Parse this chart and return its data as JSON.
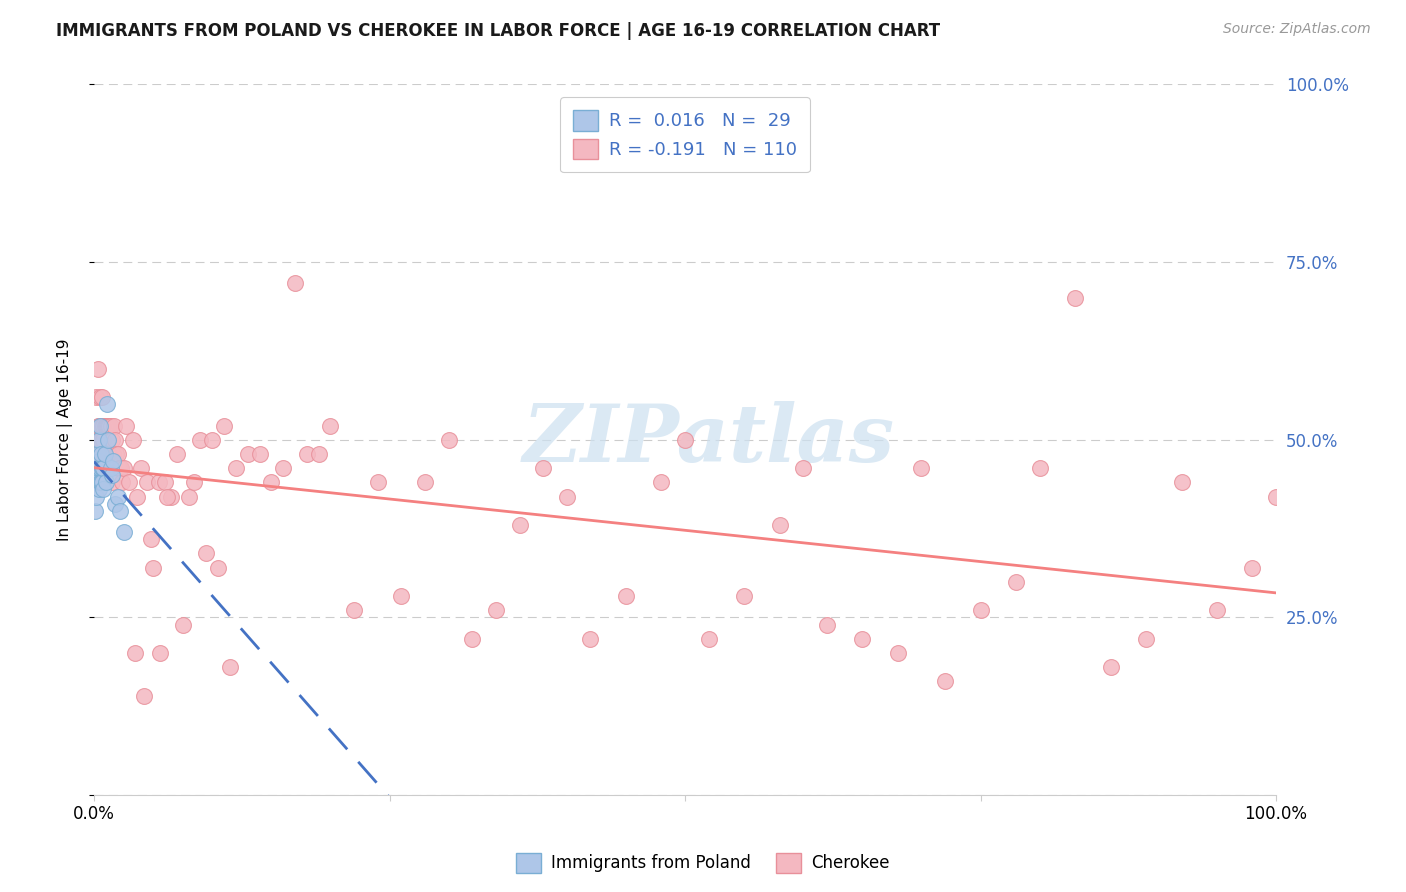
{
  "title": "IMMIGRANTS FROM POLAND VS CHEROKEE IN LABOR FORCE | AGE 16-19 CORRELATION CHART",
  "source": "Source: ZipAtlas.com",
  "ylabel": "In Labor Force | Age 16-19",
  "poland_scatter_x": [
    0.001,
    0.002,
    0.002,
    0.003,
    0.003,
    0.003,
    0.004,
    0.004,
    0.004,
    0.005,
    0.005,
    0.005,
    0.006,
    0.006,
    0.007,
    0.007,
    0.008,
    0.008,
    0.009,
    0.01,
    0.011,
    0.012,
    0.014,
    0.015,
    0.016,
    0.018,
    0.02,
    0.022,
    0.025
  ],
  "poland_scatter_y": [
    0.4,
    0.44,
    0.42,
    0.45,
    0.46,
    0.48,
    0.43,
    0.47,
    0.5,
    0.44,
    0.46,
    0.52,
    0.44,
    0.48,
    0.44,
    0.46,
    0.43,
    0.46,
    0.48,
    0.44,
    0.55,
    0.5,
    0.46,
    0.45,
    0.47,
    0.41,
    0.42,
    0.4,
    0.37
  ],
  "cherokee_scatter_x": [
    0.001,
    0.002,
    0.002,
    0.003,
    0.003,
    0.004,
    0.004,
    0.005,
    0.005,
    0.005,
    0.006,
    0.006,
    0.007,
    0.007,
    0.008,
    0.008,
    0.009,
    0.009,
    0.01,
    0.01,
    0.011,
    0.011,
    0.012,
    0.012,
    0.013,
    0.013,
    0.014,
    0.015,
    0.015,
    0.016,
    0.017,
    0.018,
    0.019,
    0.02,
    0.021,
    0.022,
    0.023,
    0.024,
    0.025,
    0.027,
    0.03,
    0.033,
    0.036,
    0.04,
    0.045,
    0.05,
    0.055,
    0.06,
    0.065,
    0.07,
    0.08,
    0.09,
    0.1,
    0.11,
    0.12,
    0.13,
    0.14,
    0.15,
    0.16,
    0.17,
    0.18,
    0.19,
    0.2,
    0.22,
    0.24,
    0.26,
    0.28,
    0.3,
    0.32,
    0.34,
    0.36,
    0.38,
    0.4,
    0.42,
    0.45,
    0.48,
    0.5,
    0.52,
    0.55,
    0.58,
    0.6,
    0.62,
    0.65,
    0.68,
    0.7,
    0.72,
    0.75,
    0.78,
    0.8,
    0.83,
    0.86,
    0.89,
    0.92,
    0.95,
    0.98,
    1.0,
    0.035,
    0.042,
    0.048,
    0.056,
    0.062,
    0.075,
    0.085,
    0.095,
    0.105,
    0.115
  ],
  "cherokee_scatter_y": [
    0.44,
    0.56,
    0.5,
    0.52,
    0.6,
    0.48,
    0.52,
    0.56,
    0.44,
    0.5,
    0.47,
    0.5,
    0.56,
    0.52,
    0.52,
    0.5,
    0.48,
    0.52,
    0.52,
    0.46,
    0.52,
    0.46,
    0.52,
    0.48,
    0.52,
    0.48,
    0.52,
    0.5,
    0.44,
    0.48,
    0.52,
    0.5,
    0.48,
    0.48,
    0.46,
    0.46,
    0.46,
    0.44,
    0.46,
    0.52,
    0.44,
    0.5,
    0.42,
    0.46,
    0.44,
    0.32,
    0.44,
    0.44,
    0.42,
    0.48,
    0.42,
    0.5,
    0.5,
    0.52,
    0.46,
    0.48,
    0.48,
    0.44,
    0.46,
    0.72,
    0.48,
    0.48,
    0.52,
    0.26,
    0.44,
    0.28,
    0.44,
    0.5,
    0.22,
    0.26,
    0.38,
    0.46,
    0.42,
    0.22,
    0.28,
    0.44,
    0.5,
    0.22,
    0.28,
    0.38,
    0.46,
    0.24,
    0.22,
    0.2,
    0.46,
    0.16,
    0.26,
    0.3,
    0.46,
    0.7,
    0.18,
    0.22,
    0.44,
    0.26,
    0.32,
    0.42,
    0.2,
    0.14,
    0.36,
    0.2,
    0.42,
    0.24,
    0.44,
    0.34,
    0.32,
    0.18
  ],
  "poland_line_color": "#4472c4",
  "cherokee_line_color": "#f48080",
  "poland_dot_facecolor": "#aec6e8",
  "poland_dot_edgecolor": "#7aaed4",
  "cherokee_dot_facecolor": "#f4b8c1",
  "cherokee_dot_edgecolor": "#e8909a",
  "legend_blue_color": "#4472c4",
  "legend_dark_color": "#333333",
  "watermark_color": "#cce0f0",
  "background_color": "#ffffff",
  "grid_color": "#cccccc",
  "title_fontsize": 12,
  "right_ytick_color": "#4472c4",
  "xlim": [
    0.0,
    1.0
  ],
  "ylim": [
    0.0,
    1.0
  ],
  "yticks": [
    0.0,
    0.25,
    0.5,
    0.75,
    1.0
  ],
  "ytick_labels_right": [
    "",
    "25.0%",
    "50.0%",
    "75.0%",
    "100.0%"
  ],
  "xtick_labels": [
    "0.0%",
    "",
    "",
    "",
    "100.0%"
  ]
}
